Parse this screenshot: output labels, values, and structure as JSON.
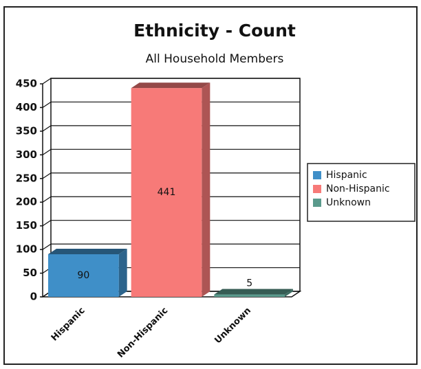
{
  "chart_data": {
    "type": "bar",
    "title": "Ethnicity - Count",
    "subtitle": "All Household Members",
    "categories": [
      "Hispanic",
      "Non-Hispanic",
      "Unknown"
    ],
    "values": [
      90,
      441,
      5
    ],
    "colors": [
      "#3f8fc8",
      "#f77a78",
      "#5a9a8c"
    ],
    "ylim": [
      0,
      450
    ],
    "yticks": [
      0,
      50,
      100,
      150,
      200,
      250,
      300,
      350,
      400,
      450
    ],
    "grid": true,
    "legend": "right"
  }
}
